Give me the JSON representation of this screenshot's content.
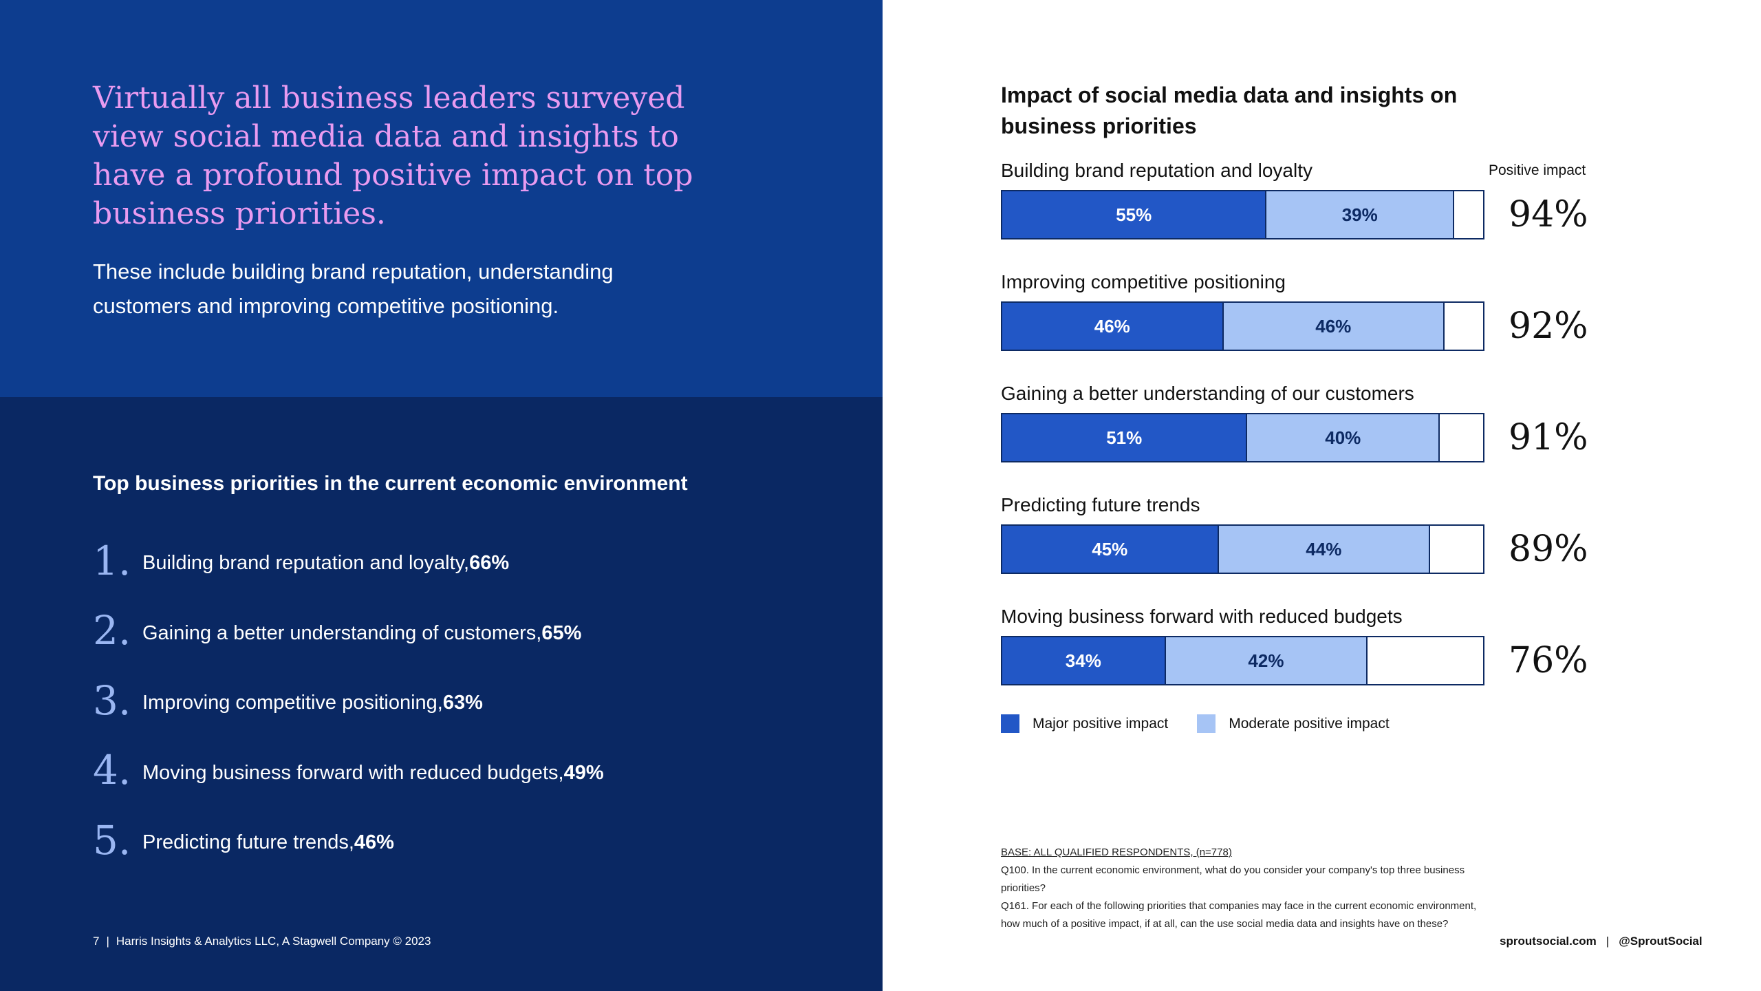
{
  "left": {
    "headline": "Virtually all business leaders surveyed view social media data and insights to have a profound positive impact on top business priorities.",
    "subhead": "These include building brand reputation, understanding customers and improving competitive positioning.",
    "priorities_title": "Top business priorities in the current economic environment",
    "priorities": [
      {
        "num": "1.",
        "text": "Building brand reputation and loyalty, ",
        "pct": "66%"
      },
      {
        "num": "2.",
        "text": "Gaining a better understanding of customers, ",
        "pct": "65%"
      },
      {
        "num": "3.",
        "text": "Improving competitive positioning, ",
        "pct": "63%"
      },
      {
        "num": "4.",
        "text": "Moving business forward with reduced budgets, ",
        "pct": "49%"
      },
      {
        "num": "5.",
        "text": "Predicting future trends, ",
        "pct": "46%"
      }
    ],
    "footer": {
      "page": "7",
      "sep": "|",
      "credit": "Harris Insights & Analytics LLC, A Stagwell Company © 2023"
    }
  },
  "chart_data": {
    "type": "bar",
    "orientation": "horizontal-stacked",
    "title": "Impact of social media data and insights on business priorities",
    "total_label": "Positive impact",
    "categories": [
      "Building brand reputation and loyalty",
      "Improving competitive positioning",
      "Gaining a better understanding of our customers",
      "Predicting future trends",
      "Moving business forward with reduced budgets"
    ],
    "series": [
      {
        "name": "Major positive impact",
        "values": [
          55,
          46,
          51,
          45,
          34
        ],
        "labels": [
          "55%",
          "46%",
          "51%",
          "45%",
          "34%"
        ],
        "color": "#2257c6"
      },
      {
        "name": "Moderate positive impact",
        "values": [
          39,
          46,
          40,
          44,
          42
        ],
        "labels": [
          "39%",
          "46%",
          "40%",
          "44%",
          "42%"
        ],
        "color": "#a6c4f5"
      }
    ],
    "totals": [
      "94%",
      "92%",
      "91%",
      "89%",
      "76%"
    ],
    "xlim": [
      0,
      100
    ],
    "legend_position": "bottom-left"
  },
  "notes": {
    "base": "BASE: ALL QUALIFIED RESPONDENTS, (n=778)",
    "q100": "Q100. In the current economic environment, what do you consider your company's top three business priorities?",
    "q161": "Q161. For each of the following priorities that companies may face in the current economic environment, how much of a positive impact, if at all, can the use social media data and insights have on these?"
  },
  "footer_right": {
    "site": "sproutsocial.com",
    "sep": "|",
    "handle": "@SproutSocial"
  }
}
